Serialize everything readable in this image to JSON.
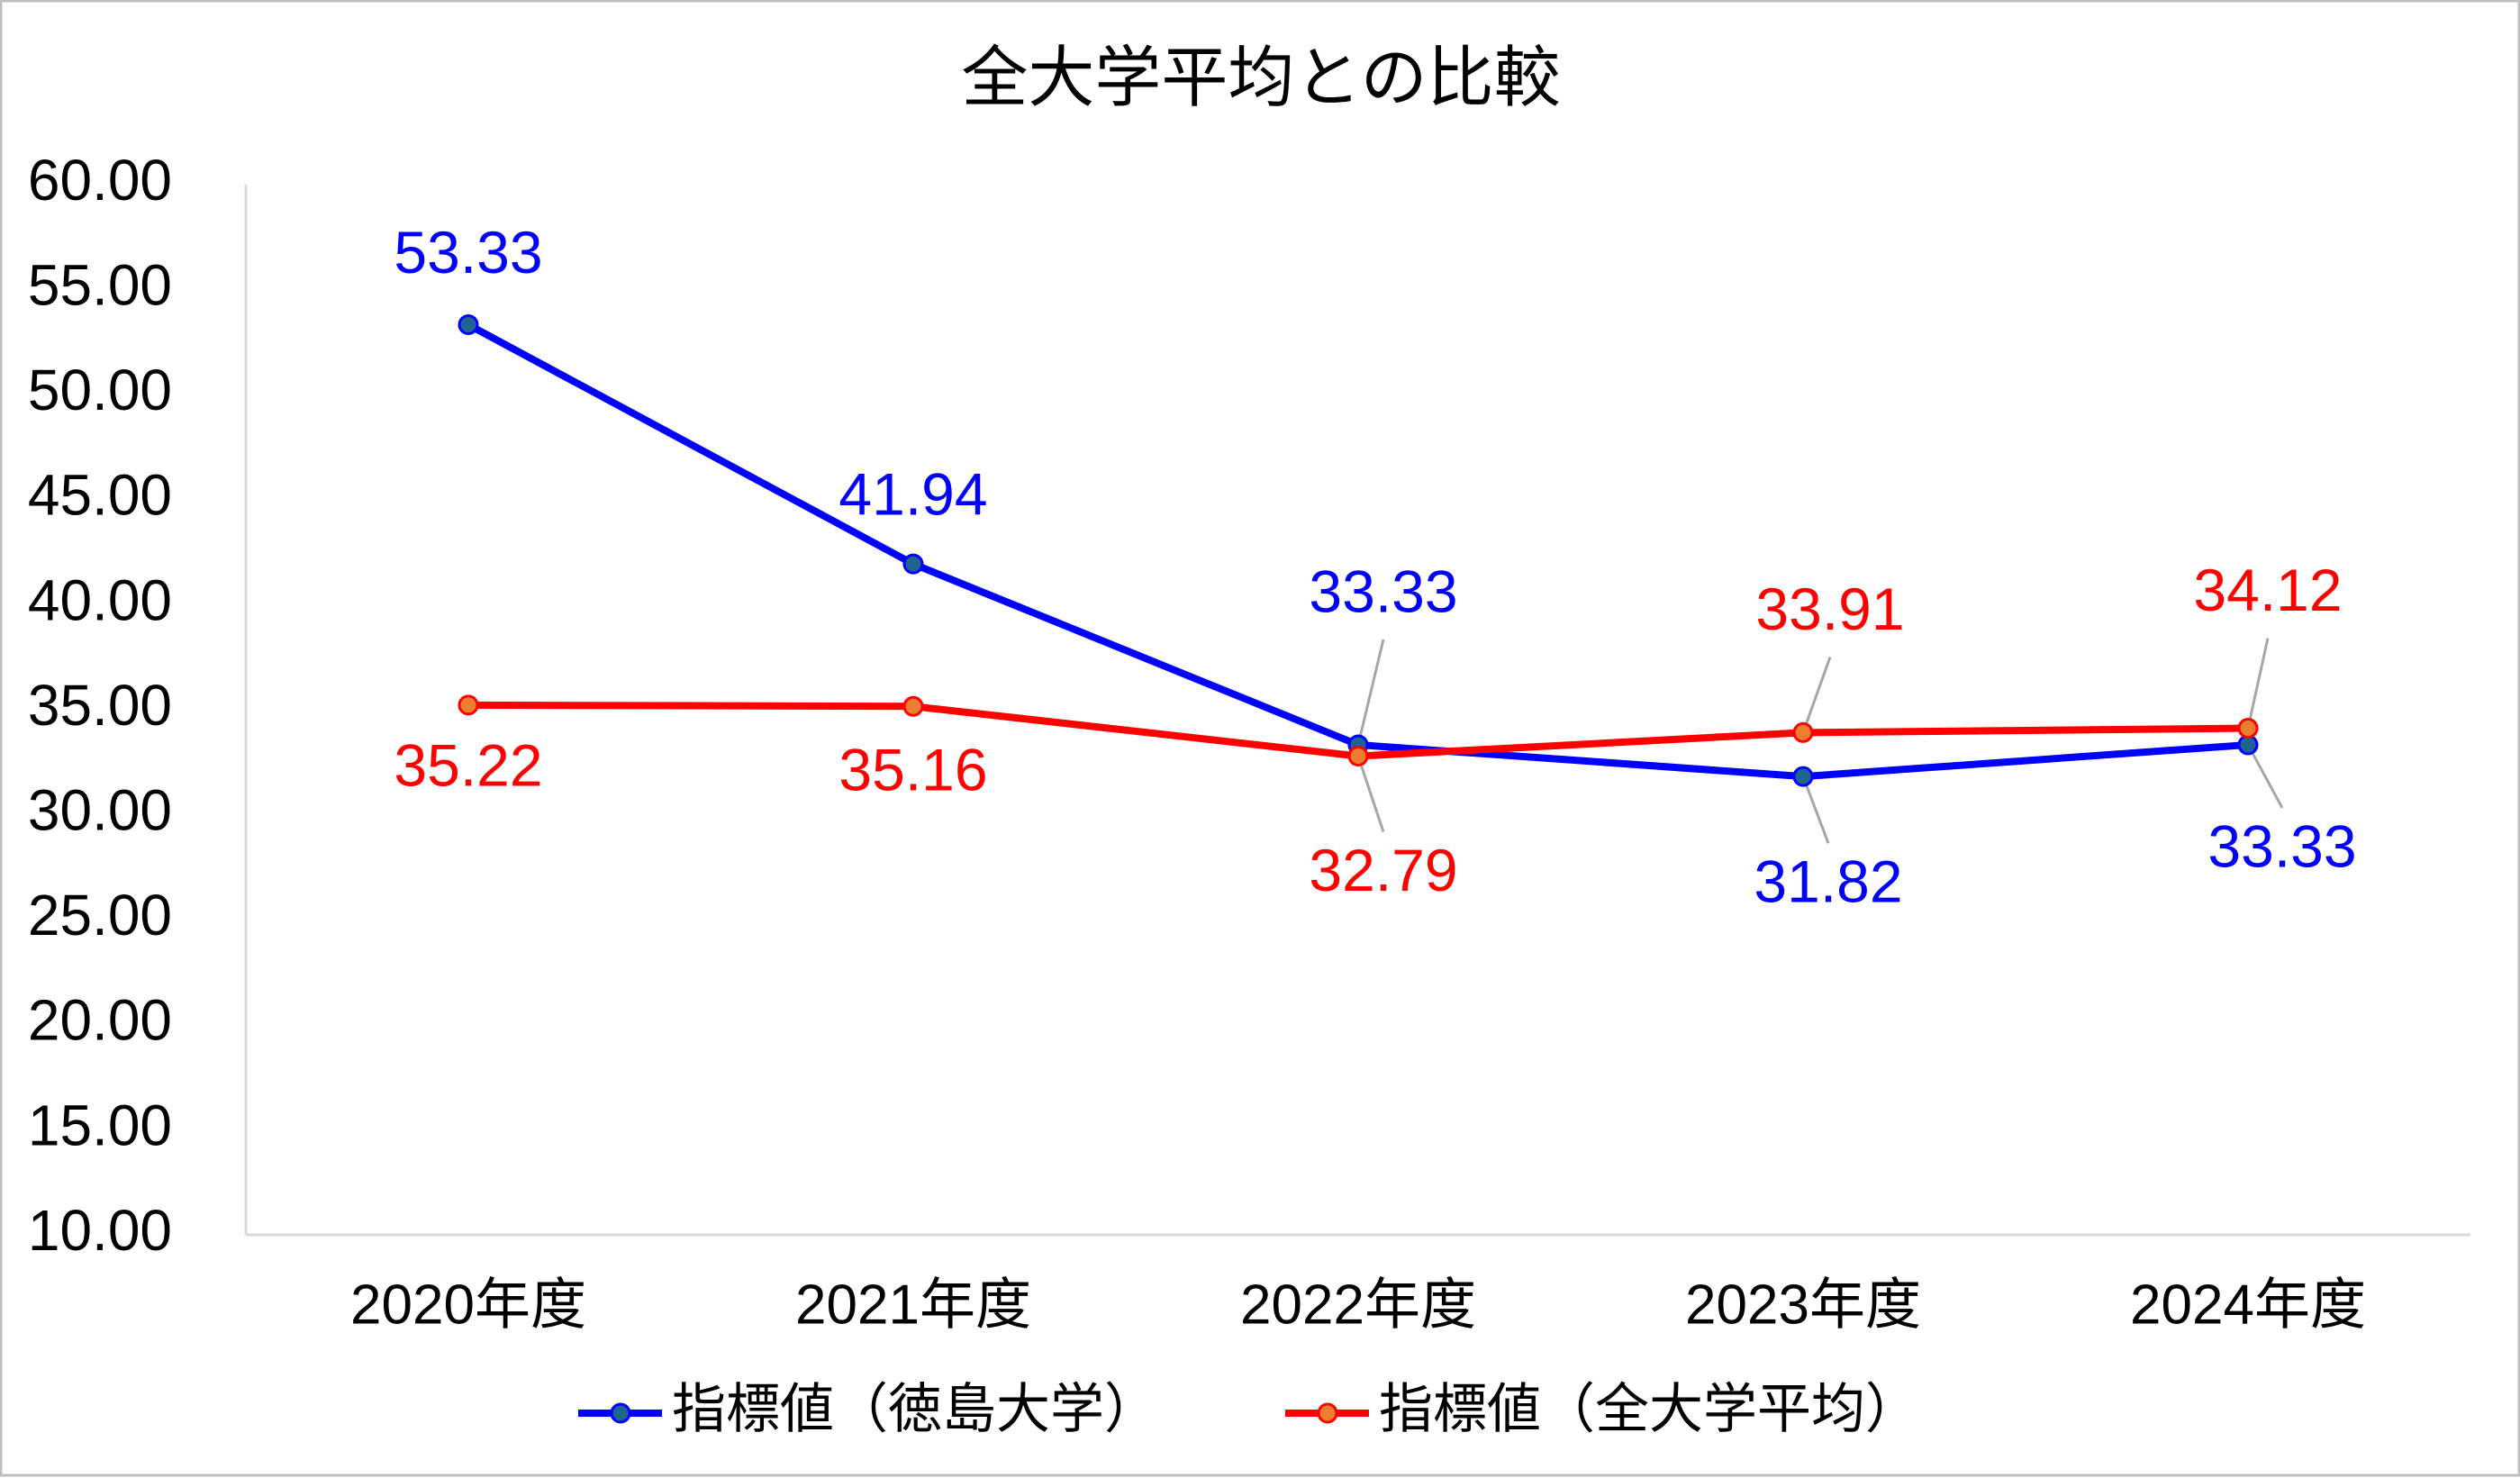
{
  "chart_data": {
    "type": "line",
    "title": "全大学平均との比較",
    "categories": [
      "2020年度",
      "2021年度",
      "2022年度",
      "2023年度",
      "2024年度"
    ],
    "ylim": [
      10,
      60
    ],
    "yticks": [
      "10.00",
      "15.00",
      "20.00",
      "25.00",
      "30.00",
      "35.00",
      "40.00",
      "45.00",
      "50.00",
      "55.00",
      "60.00"
    ],
    "grid": false,
    "legend_position": "bottom",
    "series": [
      {
        "name": "指標値（徳島大学）",
        "values": [
          53.33,
          41.94,
          33.33,
          31.82,
          33.33
        ],
        "labels": [
          "53.33",
          "41.94",
          "33.33",
          "31.82",
          "33.33"
        ],
        "line_color": "#0000ff",
        "marker_color": "#1f6391"
      },
      {
        "name": "指標値（全大学平均）",
        "values": [
          35.22,
          35.16,
          32.79,
          33.91,
          34.12
        ],
        "labels": [
          "35.22",
          "35.16",
          "32.79",
          "33.91",
          "34.12"
        ],
        "line_color": "#ff0000",
        "marker_color": "#ed7d31"
      }
    ]
  }
}
